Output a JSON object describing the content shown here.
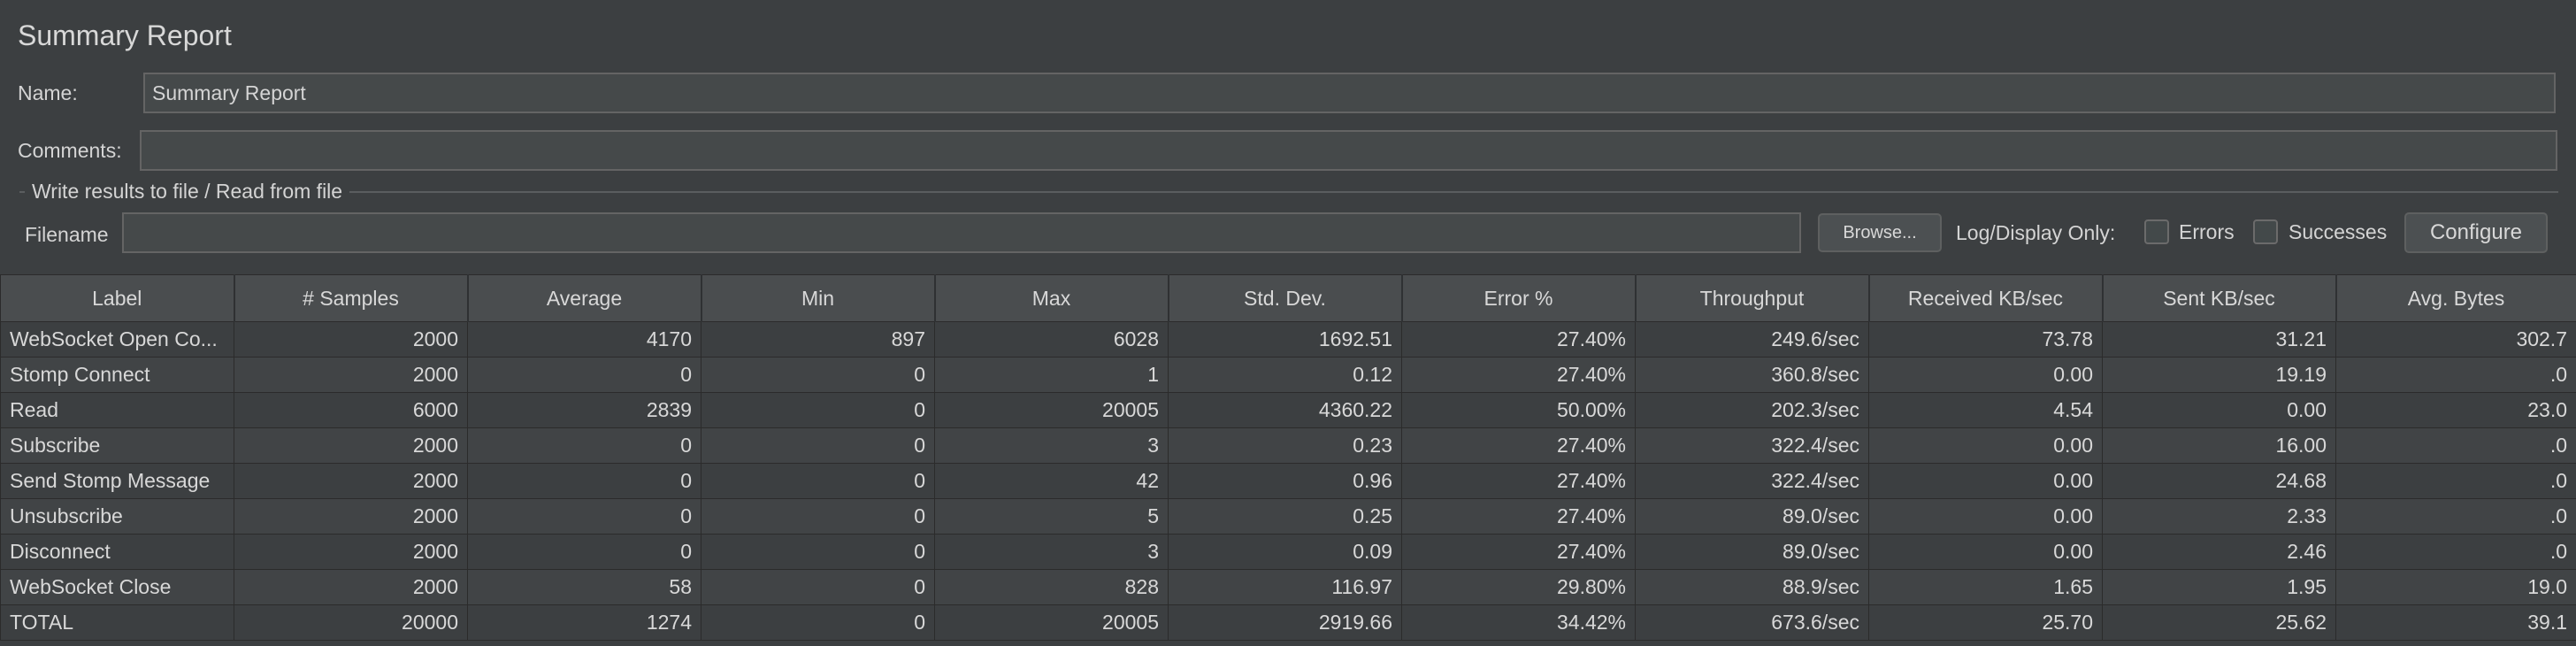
{
  "panel": {
    "title": "Summary Report"
  },
  "form": {
    "name_label": "Name:",
    "name_value": "Summary Report",
    "comments_label": "Comments:",
    "comments_value": "",
    "group_title": "Write results to file / Read from file",
    "filename_label": "Filename",
    "filename_value": "",
    "browse_label": "Browse...",
    "log_display_label": "Log/Display Only:",
    "errors_label": "Errors",
    "errors_checked": false,
    "successes_label": "Successes",
    "successes_checked": false,
    "configure_label": "Configure"
  },
  "table": {
    "headers": [
      "Label",
      "# Samples",
      "Average",
      "Min",
      "Max",
      "Std. Dev.",
      "Error %",
      "Throughput",
      "Received KB/sec",
      "Sent KB/sec",
      "Avg. Bytes"
    ],
    "rows": [
      [
        "WebSocket Open Co...",
        "2000",
        "4170",
        "897",
        "6028",
        "1692.51",
        "27.40%",
        "249.6/sec",
        "73.78",
        "31.21",
        "302.7"
      ],
      [
        "Stomp Connect",
        "2000",
        "0",
        "0",
        "1",
        "0.12",
        "27.40%",
        "360.8/sec",
        "0.00",
        "19.19",
        ".0"
      ],
      [
        "Read",
        "6000",
        "2839",
        "0",
        "20005",
        "4360.22",
        "50.00%",
        "202.3/sec",
        "4.54",
        "0.00",
        "23.0"
      ],
      [
        "Subscribe",
        "2000",
        "0",
        "0",
        "3",
        "0.23",
        "27.40%",
        "322.4/sec",
        "0.00",
        "16.00",
        ".0"
      ],
      [
        "Send Stomp Message",
        "2000",
        "0",
        "0",
        "42",
        "0.96",
        "27.40%",
        "322.4/sec",
        "0.00",
        "24.68",
        ".0"
      ],
      [
        "Unsubscribe",
        "2000",
        "0",
        "0",
        "5",
        "0.25",
        "27.40%",
        "89.0/sec",
        "0.00",
        "2.33",
        ".0"
      ],
      [
        "Disconnect",
        "2000",
        "0",
        "0",
        "3",
        "0.09",
        "27.40%",
        "89.0/sec",
        "0.00",
        "2.46",
        ".0"
      ],
      [
        "WebSocket Close",
        "2000",
        "58",
        "0",
        "828",
        "116.97",
        "29.80%",
        "88.9/sec",
        "1.65",
        "1.95",
        "19.0"
      ],
      [
        "TOTAL",
        "20000",
        "1274",
        "0",
        "20005",
        "2919.66",
        "34.42%",
        "673.6/sec",
        "25.70",
        "25.62",
        "39.1"
      ]
    ]
  }
}
